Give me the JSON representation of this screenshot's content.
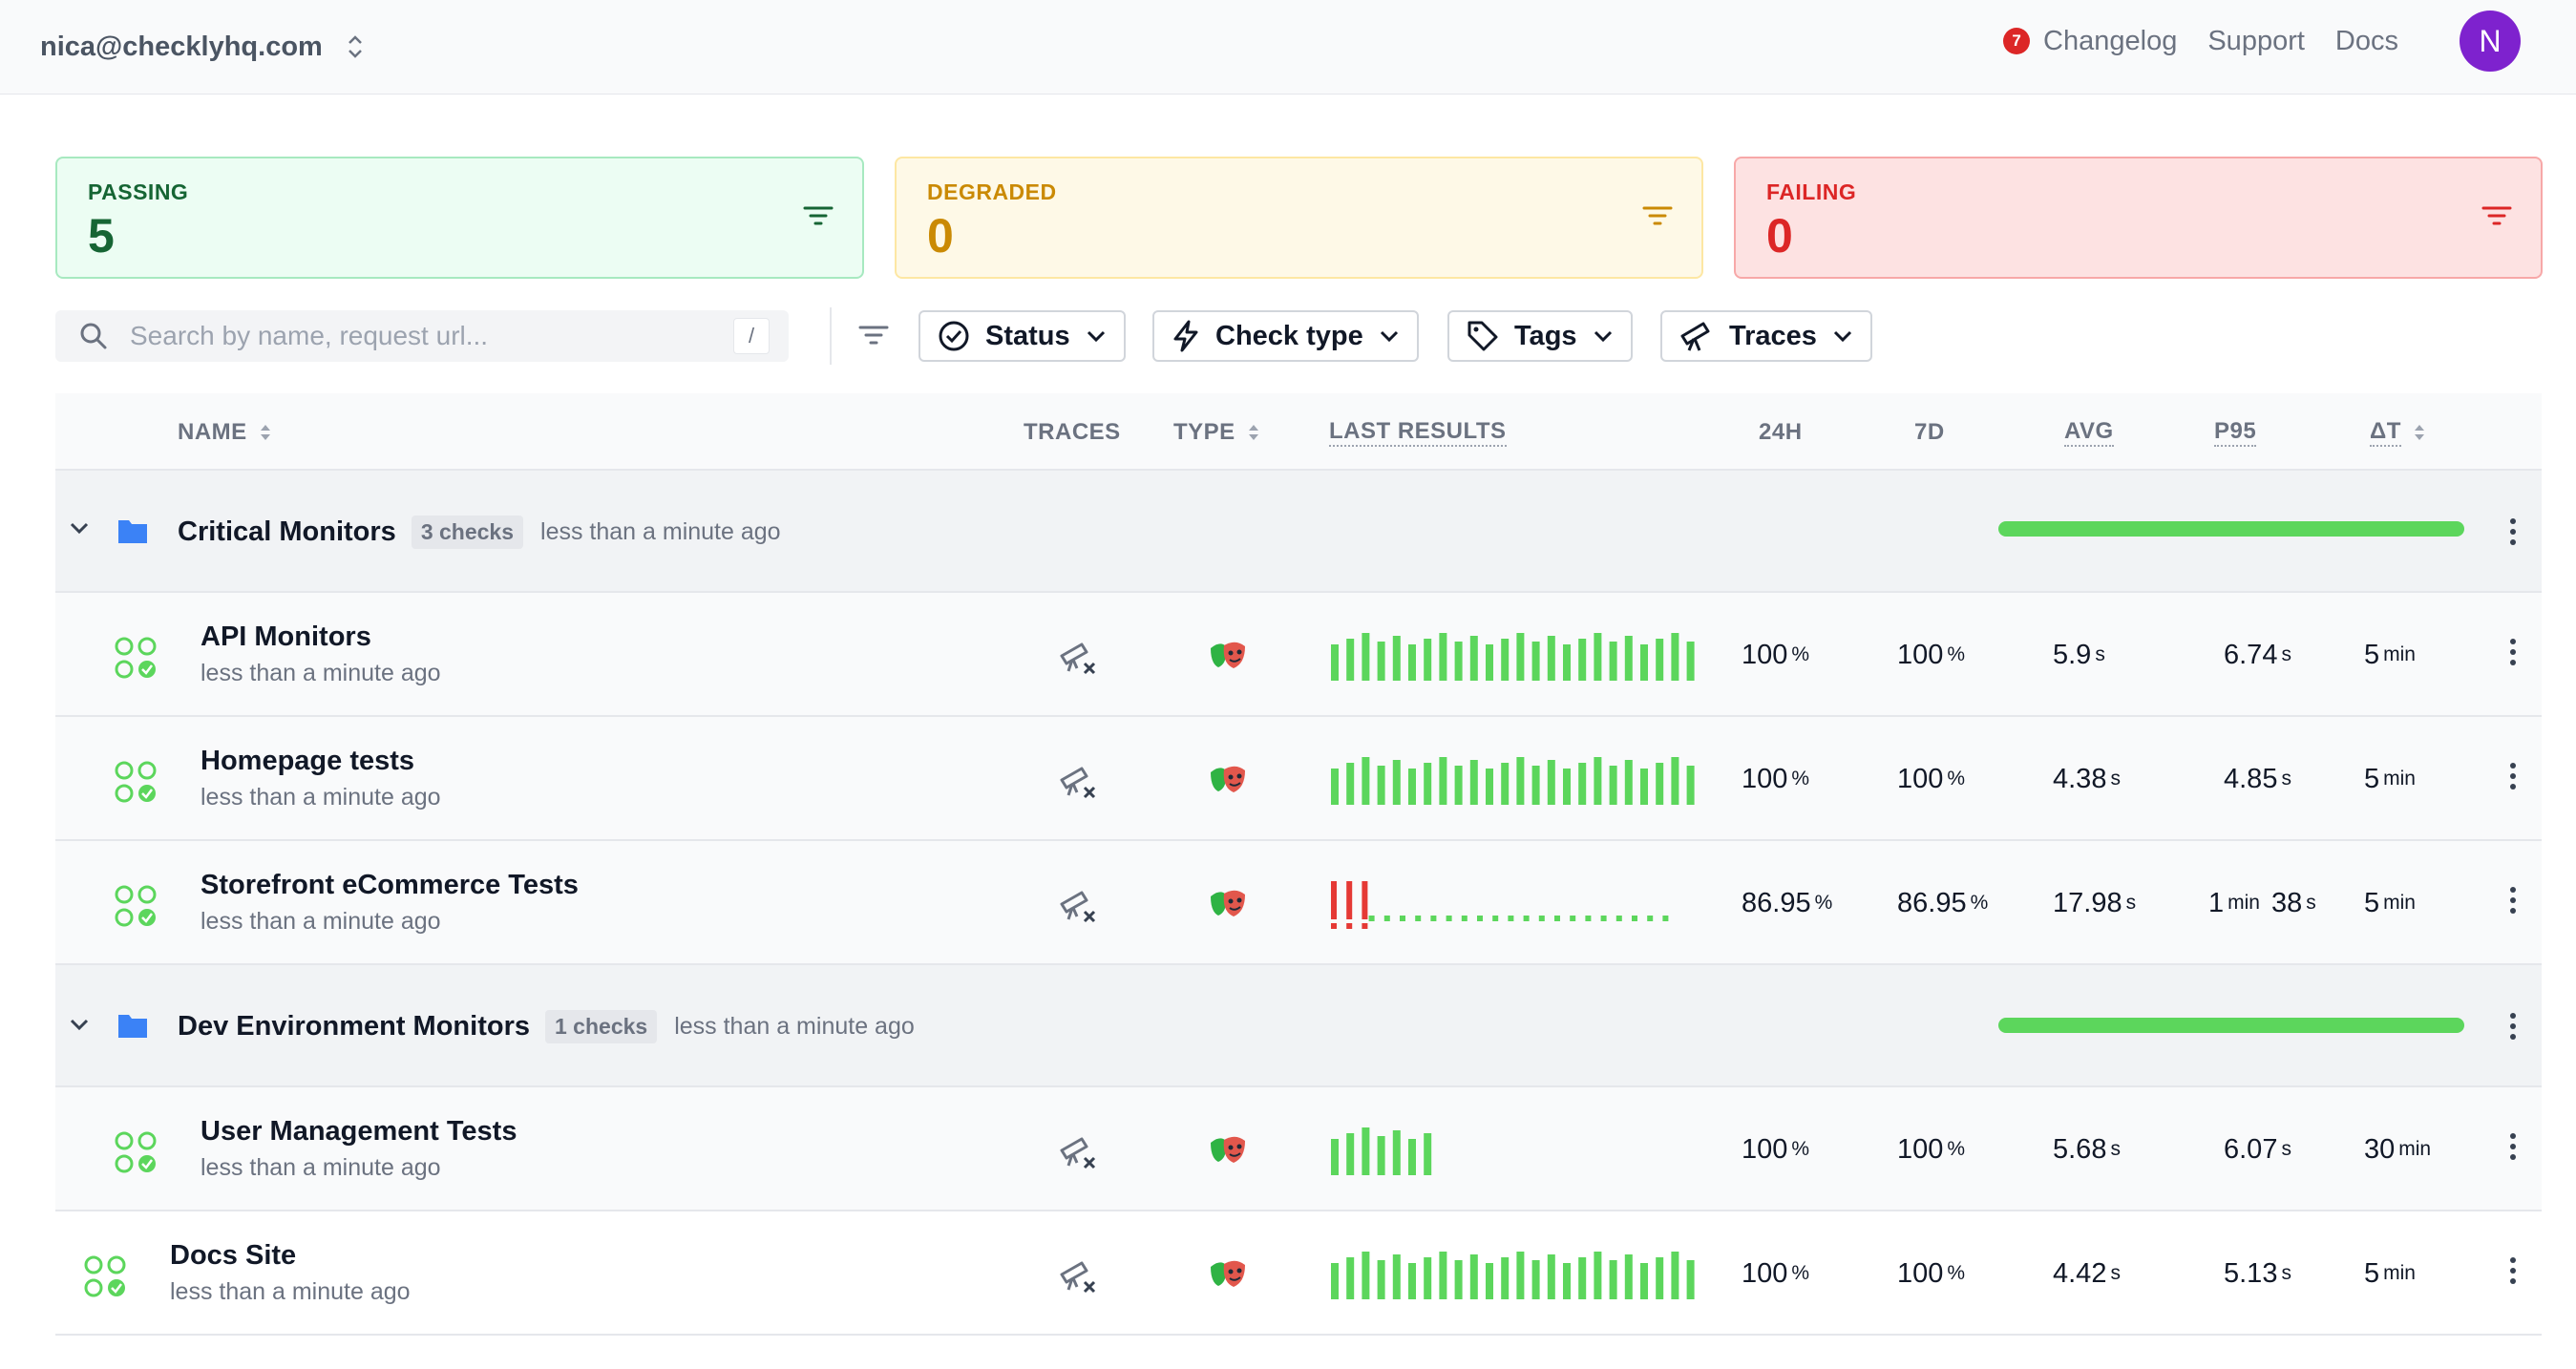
{
  "header": {
    "account": "nica@checklyhq.com",
    "changelog_count": "7",
    "links": [
      "Changelog",
      "Support",
      "Docs"
    ],
    "avatar_initial": "N"
  },
  "summary": {
    "passing": {
      "label": "PASSING",
      "count": "5"
    },
    "degraded": {
      "label": "DEGRADED",
      "count": "0"
    },
    "failing": {
      "label": "FAILING",
      "count": "0"
    }
  },
  "search": {
    "placeholder": "Search by name, request url...",
    "shortcut": "/"
  },
  "filters": [
    "Status",
    "Check type",
    "Tags",
    "Traces"
  ],
  "columns": {
    "name": "NAME",
    "traces": "TRACES",
    "type": "TYPE",
    "last_results": "LAST RESULTS",
    "h24": "24H",
    "d7": "7D",
    "avg": "AVG",
    "p95": "P95",
    "dt": "ΔT"
  },
  "groups": [
    {
      "name": "Critical Monitors",
      "count": "3 checks",
      "updated": "less than a minute ago",
      "health": 1.0
    },
    {
      "name": "Dev Environment Monitors",
      "count": "1 checks",
      "updated": "less than a minute ago",
      "health": 1.0
    }
  ],
  "checks": [
    {
      "name": "API Monitors",
      "updated": "less than a minute ago",
      "h24": "100",
      "h24_unit": "%",
      "d7": "100",
      "d7_unit": "%",
      "avg": "5.9",
      "avg_unit": "s",
      "p95": "6.74",
      "p95_unit": "s",
      "p95_pre": "",
      "p95_pre_unit": "",
      "dt": "5",
      "dt_unit": "min",
      "results": [
        1,
        1,
        1,
        1,
        1,
        1,
        1,
        1,
        1,
        1,
        1,
        1,
        1,
        1,
        1,
        1,
        1,
        1,
        1,
        1,
        1,
        1,
        1,
        1
      ]
    },
    {
      "name": "Homepage tests",
      "updated": "less than a minute ago",
      "h24": "100",
      "h24_unit": "%",
      "d7": "100",
      "d7_unit": "%",
      "avg": "4.38",
      "avg_unit": "s",
      "p95": "4.85",
      "p95_unit": "s",
      "p95_pre": "",
      "p95_pre_unit": "",
      "dt": "5",
      "dt_unit": "min",
      "results": [
        1,
        1,
        1,
        1,
        1,
        1,
        1,
        1,
        1,
        1,
        1,
        1,
        1,
        1,
        1,
        1,
        1,
        1,
        1,
        1,
        1,
        1,
        1,
        1
      ]
    },
    {
      "name": "Storefront eCommerce Tests",
      "updated": "less than a minute ago",
      "h24": "86.95",
      "h24_unit": "%",
      "d7": "86.95",
      "d7_unit": "%",
      "avg": "17.98",
      "avg_unit": "s",
      "p95": "38",
      "p95_unit": "s",
      "p95_pre": "1",
      "p95_pre_unit": "min",
      "dt": "5",
      "dt_unit": "min",
      "results": [
        0,
        0,
        0,
        2,
        2,
        2,
        2,
        2,
        2,
        2,
        2,
        2,
        2,
        2,
        2,
        2,
        2,
        2,
        2,
        2,
        2,
        2,
        2
      ]
    },
    {
      "name": "User Management Tests",
      "updated": "less than a minute ago",
      "h24": "100",
      "h24_unit": "%",
      "d7": "100",
      "d7_unit": "%",
      "avg": "5.68",
      "avg_unit": "s",
      "p95": "6.07",
      "p95_unit": "s",
      "p95_pre": "",
      "p95_pre_unit": "",
      "dt": "30",
      "dt_unit": "min",
      "results": [
        1,
        1,
        1,
        1,
        1,
        1,
        1
      ]
    },
    {
      "name": "Docs Site",
      "updated": "less than a minute ago",
      "h24": "100",
      "h24_unit": "%",
      "d7": "100",
      "d7_unit": "%",
      "avg": "4.42",
      "avg_unit": "s",
      "p95": "5.13",
      "p95_unit": "s",
      "p95_pre": "",
      "p95_pre_unit": "",
      "dt": "5",
      "dt_unit": "min",
      "results": [
        1,
        1,
        1,
        1,
        1,
        1,
        1,
        1,
        1,
        1,
        1,
        1,
        1,
        1,
        1,
        1,
        1,
        1,
        1,
        1,
        1,
        1,
        1,
        1
      ]
    }
  ],
  "colors": {
    "pass": "#5cd65c",
    "fail": "#e53935",
    "accent": "#7e22ce"
  }
}
